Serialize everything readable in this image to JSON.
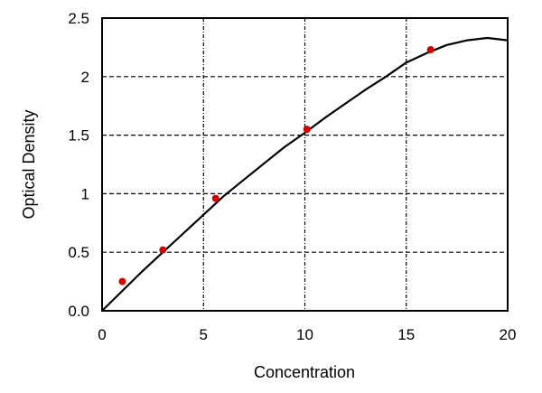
{
  "chart_data": {
    "type": "scatter",
    "title": "",
    "xlabel": "Concentration",
    "ylabel": "Optical Density",
    "xlim": [
      0,
      20
    ],
    "ylim": [
      0,
      2.5
    ],
    "grid": true,
    "x_ticks": [
      0,
      5,
      10,
      15,
      20
    ],
    "x_tick_labels": [
      "0",
      "5",
      "10",
      "15",
      "20"
    ],
    "y_ticks": [
      0,
      0.5,
      1,
      1.5,
      2,
      2.5
    ],
    "y_tick_labels": [
      "0.0",
      "0.5",
      "1",
      "1.5",
      "2",
      "2.5"
    ],
    "points": {
      "x": [
        1,
        3,
        5.6,
        10.1,
        16.2
      ],
      "y": [
        0.25,
        0.52,
        0.96,
        1.55,
        2.23
      ],
      "color": "#d40000"
    },
    "fit_curve": {
      "x": [
        0,
        1,
        2,
        3,
        4,
        5,
        6,
        7,
        8,
        9,
        10,
        11,
        12,
        13,
        14,
        15,
        16,
        17,
        18,
        19,
        20
      ],
      "y": [
        0,
        0.17,
        0.34,
        0.5,
        0.66,
        0.82,
        0.98,
        1.12,
        1.26,
        1.4,
        1.52,
        1.65,
        1.77,
        1.89,
        2.0,
        2.12,
        2.2,
        2.27,
        2.31,
        2.33,
        2.31
      ],
      "color": "#000000"
    }
  }
}
